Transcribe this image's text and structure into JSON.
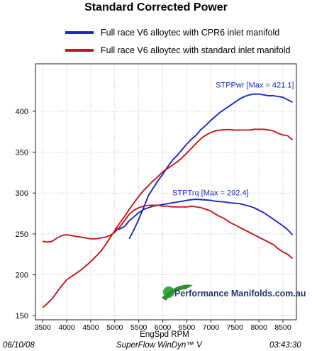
{
  "chart_data": {
    "type": "line",
    "title": "Standard Corrected Power",
    "xlabel": "EngSpd  RPM",
    "xlim": [
      3350,
      8780
    ],
    "ylim": [
      145,
      458
    ],
    "xticks": [
      3500,
      4000,
      4500,
      5000,
      5500,
      6000,
      6500,
      7000,
      7500,
      8000,
      8500
    ],
    "yticks": [
      150,
      200,
      250,
      300,
      350,
      400
    ],
    "grid": true,
    "legend_placement": "top",
    "series": [
      {
        "name": "Full race V6 alloytec with CPR6 inlet manifold",
        "color": "#1a28c8",
        "curves": [
          {
            "label": "STPPwr [Max = 421.1]",
            "x": [
              5300,
              5400,
              5500,
              5600,
              5700,
              5800,
              5900,
              6000,
              6100,
              6200,
              6300,
              6400,
              6500,
              6600,
              6700,
              6800,
              6900,
              7000,
              7100,
              7200,
              7300,
              7400,
              7500,
              7600,
              7700,
              7800,
              7900,
              8000,
              8100,
              8200,
              8300,
              8400,
              8500,
              8600,
              8700
            ],
            "y": [
              244,
              255,
              268,
              282,
              297,
              306,
              315,
              323,
              332,
              340,
              346,
              353,
              360,
              366,
              371,
              378,
              383,
              389,
              394,
              399,
              403,
              407,
              411,
              415,
              418,
              420,
              421.1,
              421,
              420,
              419,
              419,
              418,
              417,
              414,
              411
            ]
          },
          {
            "label": "STPTrq [Max = 292.4]",
            "x": [
              5000,
              5100,
              5200,
              5300,
              5400,
              5500,
              5600,
              5700,
              5800,
              5900,
              6000,
              6100,
              6200,
              6300,
              6400,
              6500,
              6600,
              6700,
              6800,
              6900,
              7000,
              7100,
              7200,
              7300,
              7400,
              7500,
              7600,
              7700,
              7800,
              7900,
              8000,
              8100,
              8200,
              8300,
              8400,
              8500,
              8600,
              8700
            ],
            "y": [
              256,
              256,
              259,
              266,
              271,
              276,
              280,
              282,
              284,
              285,
              286,
              287,
              288,
              289,
              290,
              291,
              292,
              292.4,
              292,
              291.5,
              291,
              290,
              289.5,
              289,
              288,
              287.5,
              287,
              285.5,
              284,
              282,
              279,
              276,
              272,
              268,
              264,
              260,
              255,
              249
            ]
          }
        ]
      },
      {
        "name": "Full race V6 alloytec with standard inlet manifold",
        "color": "#c8141e",
        "curves": [
          {
            "label": "STPPwr",
            "x": [
              3500,
              3600,
              3700,
              3800,
              3900,
              4000,
              4100,
              4200,
              4300,
              4400,
              4500,
              4600,
              4700,
              4800,
              4900,
              5000,
              5100,
              5200,
              5300,
              5400,
              5500,
              5600,
              5700,
              5800,
              5900,
              6000,
              6100,
              6200,
              6300,
              6400,
              6500,
              6600,
              6700,
              6800,
              6900,
              7000,
              7100,
              7200,
              7300,
              7400,
              7500,
              7600,
              7700,
              7800,
              7900,
              8000,
              8100,
              8200,
              8300,
              8400,
              8500,
              8600,
              8700
            ],
            "y": [
              160,
              165,
              171,
              179,
              187,
              194,
              198,
              202,
              206,
              211,
              216,
              222,
              228,
              236,
              245,
              254,
              263,
              271,
              280,
              288,
              296,
              303,
              309,
              315,
              320,
              326,
              330,
              334,
              338,
              343,
              349,
              355,
              361,
              367,
              371,
              374,
              376,
              377,
              377.5,
              377.5,
              377,
              377,
              377,
              377,
              378,
              378,
              378,
              377,
              376,
              373,
              371,
              370,
              365
            ]
          },
          {
            "label": "STPTrq",
            "x": [
              3500,
              3600,
              3700,
              3800,
              3900,
              4000,
              4100,
              4200,
              4300,
              4400,
              4500,
              4600,
              4700,
              4800,
              4900,
              5000,
              5100,
              5200,
              5300,
              5400,
              5500,
              5600,
              5700,
              5800,
              5900,
              6000,
              6100,
              6200,
              6300,
              6400,
              6500,
              6600,
              6700,
              6800,
              6900,
              7000,
              7100,
              7200,
              7300,
              7400,
              7500,
              7600,
              7700,
              7800,
              7900,
              8000,
              8100,
              8200,
              8300,
              8400,
              8500,
              8600,
              8700
            ],
            "y": [
              241,
              240,
              241,
              245,
              248,
              249,
              248,
              247,
              246,
              245,
              244,
              244,
              245,
              246,
              248,
              252,
              258,
              266,
              274,
              279,
              282,
              284,
              285,
              285,
              285,
              284,
              284,
              283,
              283,
              283,
              283,
              284,
              283,
              282,
              280,
              278,
              274,
              271,
              268,
              264,
              261,
              258,
              255,
              252,
              249,
              246,
              243,
              240,
              237,
              232,
              228,
              225,
              220
            ]
          }
        ]
      }
    ],
    "annotations": [
      {
        "text": "STPPwr [Max = 421.1]",
        "at": [
          7100,
          429
        ],
        "color": "#1a28c8"
      },
      {
        "text": "STPTrq [Max = 292.4]",
        "at": [
          6200,
          297
        ],
        "color": "#1a28c8"
      }
    ]
  },
  "watermark": {
    "text": "Performance Manifolds.com.au",
    "color": "#1e3a6e"
  },
  "footer": {
    "date": "06/10/08",
    "software": "SuperFlow WinDyn™ V",
    "time": "03:43:30"
  }
}
